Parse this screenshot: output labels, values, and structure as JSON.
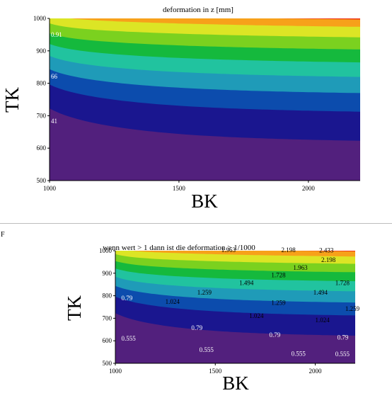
{
  "marker_letter": "F",
  "chart_data": [
    {
      "type": "contour",
      "title": "deformation in z [mm]",
      "xlabel": "BK",
      "ylabel": "TK",
      "xlim": [
        1000,
        2200
      ],
      "ylim": [
        500,
        1000
      ],
      "xticks": [
        "1000",
        "1500",
        "2000"
      ],
      "yticks": [
        "500",
        "600",
        "700",
        "800",
        "900",
        "1000"
      ],
      "edge_labels": [
        "0.91",
        "66",
        "41"
      ],
      "colors": [
        "#52207d",
        "#1a168f",
        "#0c4cad",
        "#1f9bb8",
        "#21c39f",
        "#15b93d",
        "#7bd11f",
        "#dce525",
        "#f7a11a",
        "#ef3517"
      ]
    },
    {
      "type": "contour",
      "title": "wenn wert > 1 dann ist die deformation > 1/1000",
      "xlabel": "BK",
      "ylabel": "TK",
      "xlim": [
        1000,
        2200
      ],
      "ylim": [
        500,
        1000
      ],
      "xticks": [
        "1000",
        "1500",
        "2000"
      ],
      "yticks": [
        "500",
        "600",
        "700",
        "800",
        "900",
        "1000"
      ],
      "levels": [
        "0.555",
        "0.79",
        "1.024",
        "1.259",
        "1.494",
        "1.728",
        "1.963",
        "2.198",
        "2.433"
      ],
      "contour_labels": [
        {
          "text": "0.555",
          "bk": 1030,
          "tk": 610,
          "light": true
        },
        {
          "text": "0.555",
          "bk": 1420,
          "tk": 560,
          "light": true
        },
        {
          "text": "0.555",
          "bk": 1880,
          "tk": 543,
          "light": true
        },
        {
          "text": "0.555",
          "bk": 2100,
          "tk": 541,
          "light": true
        },
        {
          "text": "0.79",
          "bk": 1030,
          "tk": 790,
          "light": true
        },
        {
          "text": "0.79",
          "bk": 1380,
          "tk": 658,
          "light": true
        },
        {
          "text": "0.79",
          "bk": 1770,
          "tk": 626,
          "light": true
        },
        {
          "text": "0.79",
          "bk": 2110,
          "tk": 614,
          "light": true
        },
        {
          "text": "1.024",
          "bk": 1250,
          "tk": 774,
          "light": false
        },
        {
          "text": "1.024",
          "bk": 1670,
          "tk": 711,
          "light": false
        },
        {
          "text": "1.024",
          "bk": 2000,
          "tk": 692,
          "light": false
        },
        {
          "text": "1.259",
          "bk": 1410,
          "tk": 814,
          "light": false
        },
        {
          "text": "1.259",
          "bk": 1780,
          "tk": 769,
          "light": false
        },
        {
          "text": "1.259",
          "bk": 2150,
          "tk": 742,
          "light": false
        },
        {
          "text": "1.494",
          "bk": 1620,
          "tk": 857,
          "light": false
        },
        {
          "text": "1.494",
          "bk": 1990,
          "tk": 814,
          "light": false
        },
        {
          "text": "1.728",
          "bk": 1780,
          "tk": 891,
          "light": false
        },
        {
          "text": "1.728",
          "bk": 2100,
          "tk": 857,
          "light": false
        },
        {
          "text": "1.963",
          "bk": 1890,
          "tk": 925,
          "light": false
        },
        {
          "text": "2.198",
          "bk": 2030,
          "tk": 959,
          "light": false
        },
        {
          "text": "1.963",
          "bk": 1530,
          "tk": 1003,
          "light": false
        },
        {
          "text": "2.198",
          "bk": 1830,
          "tk": 1003,
          "light": false
        },
        {
          "text": "2.433",
          "bk": 2020,
          "tk": 1001,
          "light": false
        }
      ],
      "colors": [
        "#52207d",
        "#1a168f",
        "#0c4cad",
        "#1f9bb8",
        "#21c39f",
        "#15b93d",
        "#7bd11f",
        "#dce525",
        "#f7a11a",
        "#ef3517"
      ]
    }
  ]
}
